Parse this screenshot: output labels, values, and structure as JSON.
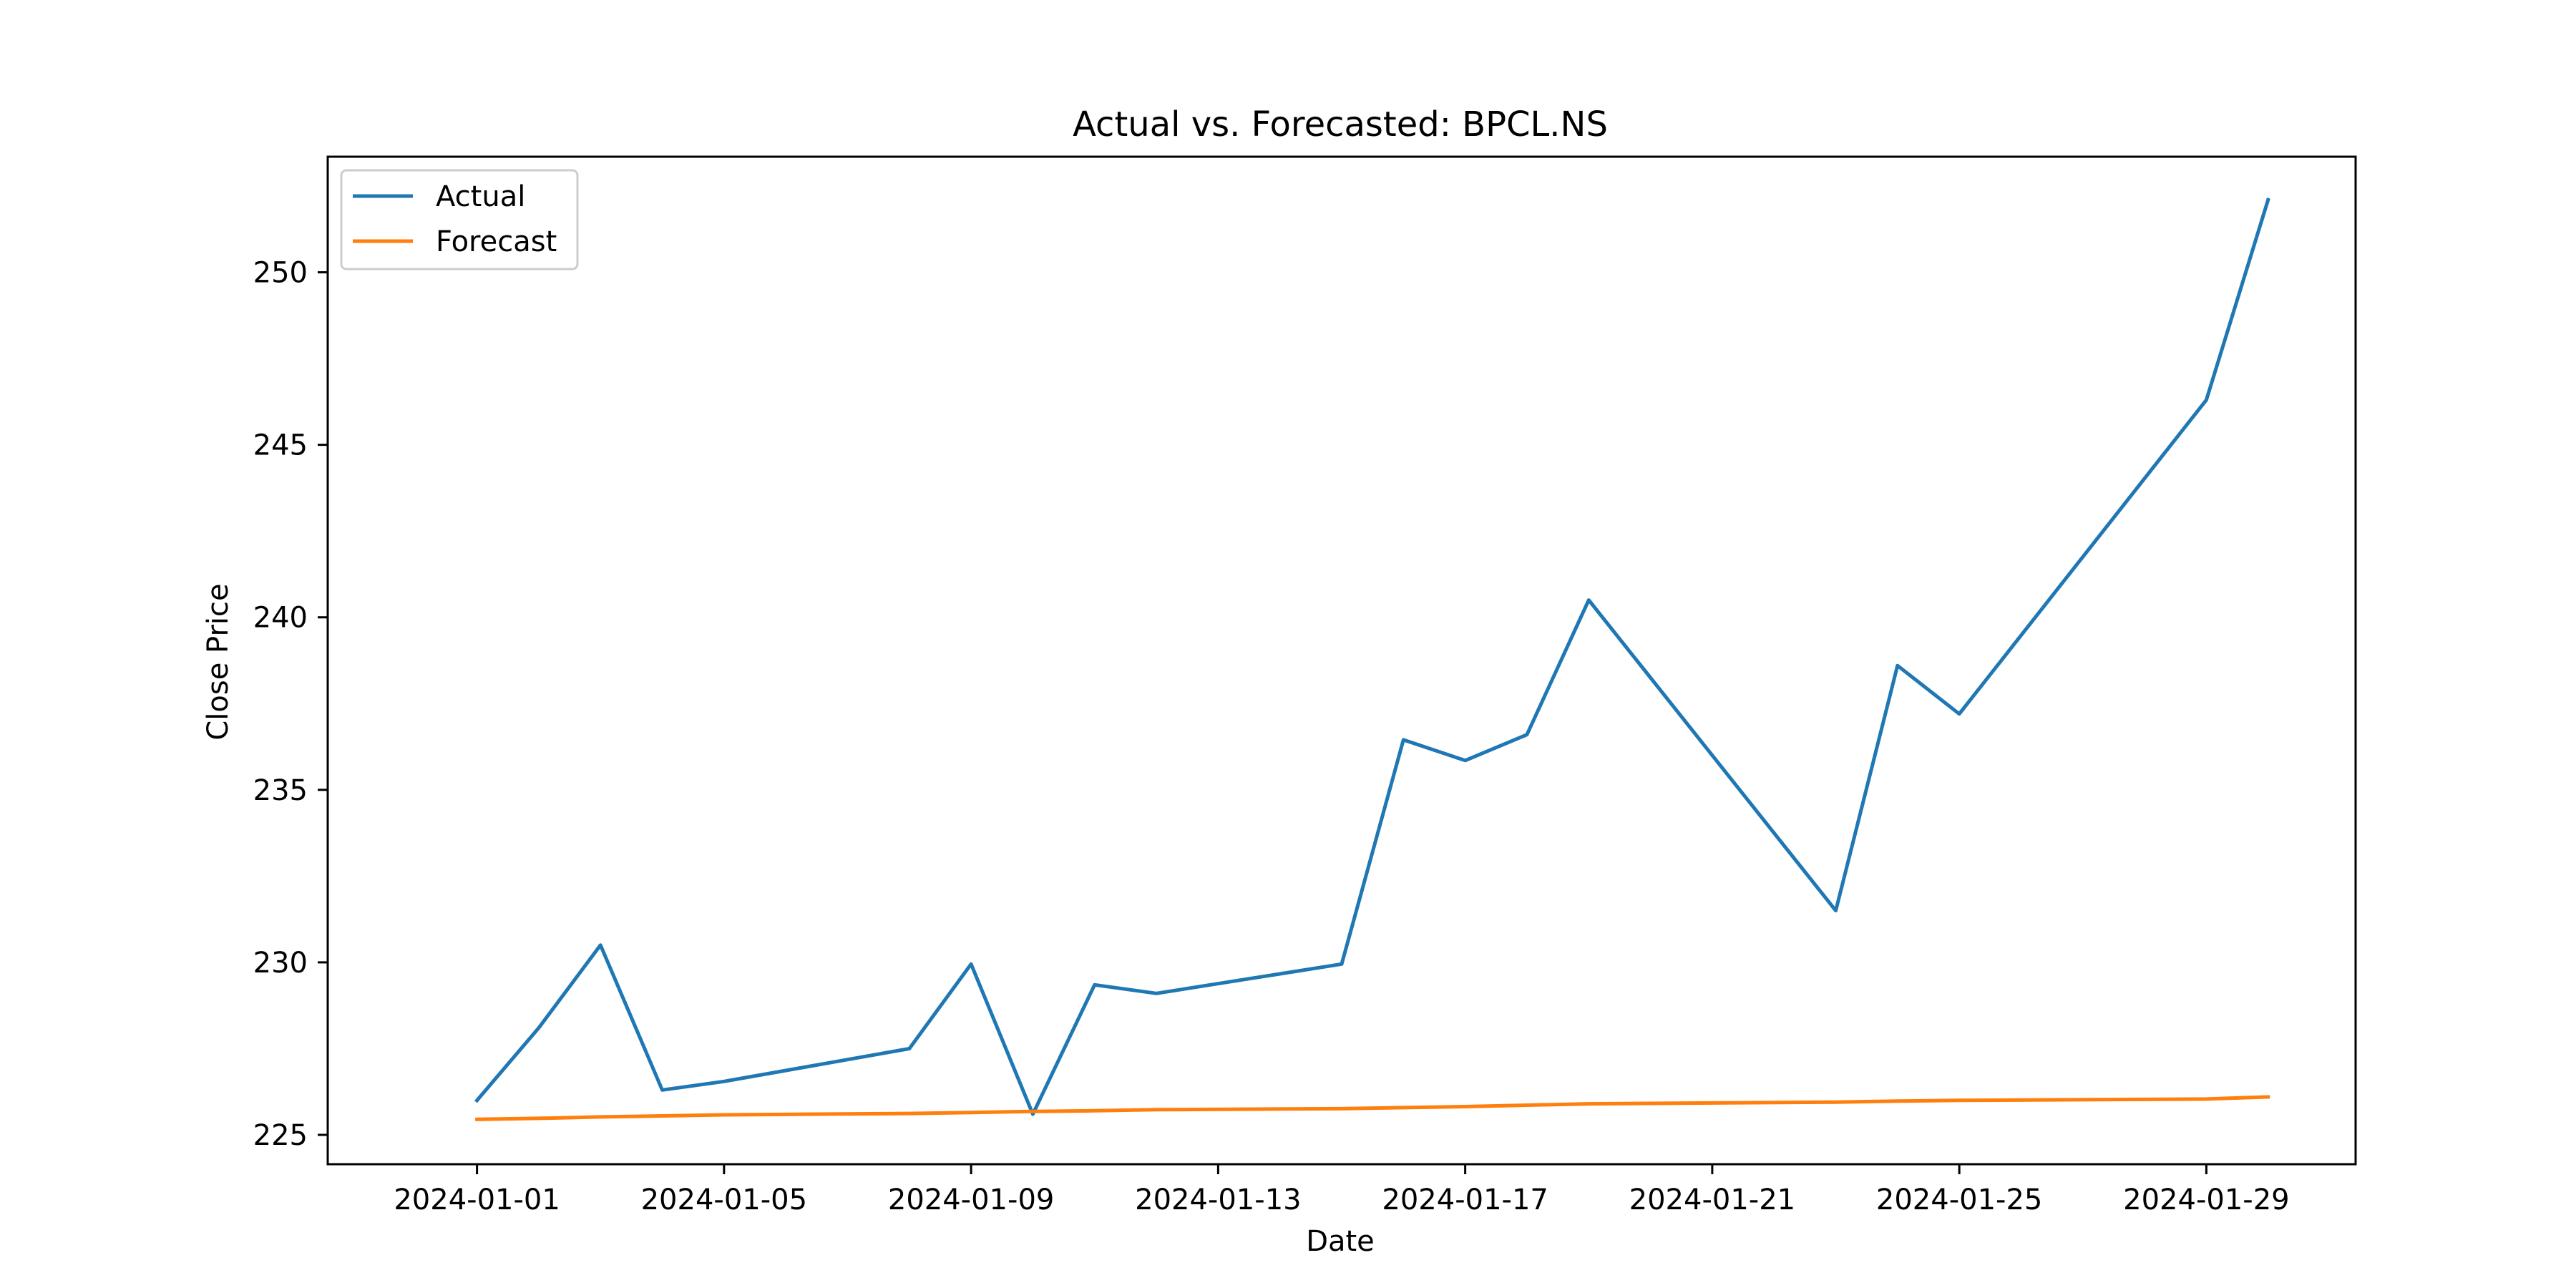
{
  "chart_data": {
    "type": "line",
    "title": "Actual vs. Forecasted: BPCL.NS",
    "xlabel": "Date",
    "ylabel": "Close Price",
    "x_type": "date",
    "xlim": [
      "2023-12-29 14:00",
      "2024-01-31 10:00"
    ],
    "ylim": [
      224.15,
      253.35
    ],
    "xticks": [
      "2024-01-01",
      "2024-01-05",
      "2024-01-09",
      "2024-01-13",
      "2024-01-17",
      "2024-01-21",
      "2024-01-25",
      "2024-01-29"
    ],
    "yticks": [
      225,
      230,
      235,
      240,
      245,
      250
    ],
    "grid": false,
    "legend_position": "top-left",
    "series": [
      {
        "name": "Actual",
        "color": "#1f77b4",
        "points": [
          [
            "2024-01-01",
            226.0
          ],
          [
            "2024-01-02",
            228.1
          ],
          [
            "2024-01-03",
            230.5
          ],
          [
            "2024-01-04",
            226.3
          ],
          [
            "2024-01-05",
            226.55
          ],
          [
            "2024-01-08",
            227.5
          ],
          [
            "2024-01-09",
            229.95
          ],
          [
            "2024-01-10",
            225.6
          ],
          [
            "2024-01-11",
            229.35
          ],
          [
            "2024-01-12",
            229.1
          ],
          [
            "2024-01-15",
            229.95
          ],
          [
            "2024-01-16",
            236.45
          ],
          [
            "2024-01-17",
            235.85
          ],
          [
            "2024-01-18",
            236.6
          ],
          [
            "2024-01-19",
            240.5
          ],
          [
            "2024-01-23",
            231.5
          ],
          [
            "2024-01-24",
            238.6
          ],
          [
            "2024-01-25",
            237.2
          ],
          [
            "2024-01-29",
            246.3
          ],
          [
            "2024-01-30",
            252.1
          ]
        ]
      },
      {
        "name": "Forecast",
        "color": "#ff7f0e",
        "points": [
          [
            "2024-01-01",
            225.45
          ],
          [
            "2024-01-02",
            225.48
          ],
          [
            "2024-01-03",
            225.52
          ],
          [
            "2024-01-04",
            225.55
          ],
          [
            "2024-01-05",
            225.58
          ],
          [
            "2024-01-08",
            225.62
          ],
          [
            "2024-01-09",
            225.65
          ],
          [
            "2024-01-10",
            225.68
          ],
          [
            "2024-01-11",
            225.7
          ],
          [
            "2024-01-12",
            225.73
          ],
          [
            "2024-01-15",
            225.76
          ],
          [
            "2024-01-16",
            225.79
          ],
          [
            "2024-01-17",
            225.82
          ],
          [
            "2024-01-18",
            225.86
          ],
          [
            "2024-01-19",
            225.9
          ],
          [
            "2024-01-23",
            225.95
          ],
          [
            "2024-01-24",
            225.98
          ],
          [
            "2024-01-25",
            226.0
          ],
          [
            "2024-01-29",
            226.04
          ],
          [
            "2024-01-30",
            226.1
          ]
        ]
      }
    ]
  }
}
